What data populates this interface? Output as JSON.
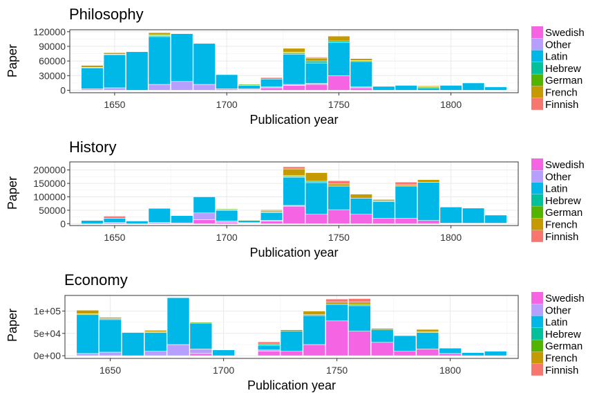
{
  "x_axis_label": "Publication year",
  "y_axis_label": "Paper",
  "legend": [
    "Swedish",
    "Other",
    "Latin",
    "Hebrew",
    "German",
    "French",
    "Finnish"
  ],
  "colors": {
    "Swedish": "#F564E3",
    "Other": "#B79FFF",
    "Latin": "#00B8E7",
    "Hebrew": "#00C19A",
    "German": "#53B400",
    "French": "#C49A00",
    "Finnish": "#F8766D"
  },
  "chart_data": [
    {
      "type": "bar",
      "stacked": true,
      "title": "Philosophy",
      "xlabel": "Publication year",
      "ylabel": "Paper",
      "xlim": [
        1630,
        1830
      ],
      "ylim": [
        -5000,
        124000
      ],
      "x_ticks": [
        1650,
        1700,
        1750,
        1800
      ],
      "y_ticks": [
        0,
        30000,
        60000,
        90000,
        120000
      ],
      "y_tick_labels": [
        "0",
        "30000",
        "60000",
        "90000",
        "120000"
      ],
      "bin_width": 10,
      "grid": true,
      "legend_position": "right",
      "categories": [
        1640,
        1650,
        1660,
        1670,
        1680,
        1690,
        1700,
        1710,
        1720,
        1730,
        1740,
        1750,
        1760,
        1770,
        1780,
        1790,
        1800,
        1810,
        1820
      ],
      "series": [
        {
          "name": "Swedish",
          "values": [
            0,
            0,
            0,
            0,
            0,
            0,
            0,
            1000,
            5000,
            10000,
            12000,
            30000,
            5000,
            0,
            0,
            0,
            0,
            0,
            0
          ]
        },
        {
          "name": "Other",
          "values": [
            3000,
            5000,
            0,
            12000,
            18000,
            12000,
            3000,
            2000,
            2000,
            2000,
            2000,
            0,
            2000,
            0,
            0,
            0,
            0,
            0,
            0
          ]
        },
        {
          "name": "Latin",
          "values": [
            43000,
            68000,
            79000,
            98000,
            98000,
            84000,
            29000,
            7000,
            16000,
            62000,
            42000,
            68000,
            52000,
            8000,
            10000,
            5000,
            10000,
            15000,
            7000
          ]
        },
        {
          "name": "Hebrew",
          "values": [
            0,
            0,
            0,
            2000,
            0,
            0,
            0,
            0,
            0,
            2000,
            4000,
            3000,
            0,
            0,
            0,
            0,
            0,
            0,
            0
          ]
        },
        {
          "name": "German",
          "values": [
            1000,
            1000,
            0,
            2000,
            0,
            0,
            0,
            2000,
            0,
            2000,
            0,
            0,
            2000,
            0,
            0,
            2000,
            0,
            0,
            0
          ]
        },
        {
          "name": "French",
          "values": [
            4000,
            3000,
            0,
            4000,
            0,
            0,
            0,
            0,
            0,
            8000,
            6000,
            10000,
            4000,
            0,
            0,
            2000,
            0,
            0,
            0
          ]
        },
        {
          "name": "Finnish",
          "values": [
            0,
            0,
            0,
            0,
            0,
            0,
            0,
            0,
            3000,
            0,
            2000,
            0,
            0,
            0,
            0,
            0,
            0,
            0,
            0
          ]
        }
      ]
    },
    {
      "type": "bar",
      "stacked": true,
      "title": "History",
      "xlabel": "Publication year",
      "ylabel": "Paper",
      "xlim": [
        1630,
        1830
      ],
      "ylim": [
        -7000,
        230000
      ],
      "x_ticks": [
        1650,
        1700,
        1750,
        1800
      ],
      "y_ticks": [
        0,
        50000,
        100000,
        150000,
        200000
      ],
      "y_tick_labels": [
        "0",
        "50000",
        "100000",
        "150000",
        "200000"
      ],
      "bin_width": 10,
      "grid": true,
      "legend_position": "right",
      "categories": [
        1640,
        1650,
        1660,
        1670,
        1680,
        1690,
        1700,
        1710,
        1720,
        1730,
        1740,
        1750,
        1760,
        1770,
        1780,
        1790,
        1800,
        1810,
        1820
      ],
      "series": [
        {
          "name": "Swedish",
          "values": [
            0,
            0,
            0,
            0,
            0,
            15000,
            5000,
            2000,
            10000,
            65000,
            35000,
            52000,
            35000,
            20000,
            20000,
            12000,
            2000,
            2000,
            2000
          ]
        },
        {
          "name": "Other",
          "values": [
            0,
            5000,
            0,
            5000,
            3000,
            25000,
            5000,
            2000,
            2000,
            3000,
            0,
            0,
            0,
            0,
            0,
            0,
            0,
            0,
            0
          ]
        },
        {
          "name": "Latin",
          "values": [
            12000,
            15000,
            10000,
            52000,
            27000,
            60000,
            40000,
            8000,
            30000,
            105000,
            118000,
            88000,
            60000,
            63000,
            120000,
            142000,
            60000,
            56000,
            30000
          ]
        },
        {
          "name": "Hebrew",
          "values": [
            0,
            0,
            0,
            0,
            0,
            0,
            2000,
            0,
            0,
            3000,
            5000,
            0,
            0,
            0,
            0,
            0,
            0,
            0,
            0
          ]
        },
        {
          "name": "German",
          "values": [
            0,
            0,
            0,
            0,
            0,
            0,
            3000,
            2000,
            2000,
            3000,
            0,
            0,
            0,
            2000,
            0,
            0,
            0,
            0,
            0
          ]
        },
        {
          "name": "French",
          "values": [
            0,
            0,
            0,
            0,
            0,
            0,
            0,
            0,
            5000,
            25000,
            32000,
            8000,
            15000,
            5000,
            5000,
            10000,
            0,
            0,
            0
          ]
        },
        {
          "name": "Finnish",
          "values": [
            0,
            8000,
            0,
            0,
            0,
            0,
            0,
            0,
            3000,
            8000,
            0,
            12000,
            0,
            0,
            10000,
            0,
            0,
            0,
            0
          ]
        }
      ]
    },
    {
      "type": "bar",
      "stacked": true,
      "title": "Economy",
      "xlabel": "Publication year",
      "ylabel": "Paper",
      "xlim": [
        1630,
        1830
      ],
      "ylim": [
        -6000,
        135000
      ],
      "x_ticks": [
        1650,
        1700,
        1750,
        1800
      ],
      "y_ticks": [
        0,
        50000,
        100000
      ],
      "y_tick_labels": [
        "0e+00",
        "5e+04",
        "1e+05"
      ],
      "bin_width": 10,
      "grid": true,
      "legend_position": "right",
      "categories": [
        1640,
        1650,
        1660,
        1670,
        1680,
        1690,
        1700,
        1710,
        1720,
        1730,
        1740,
        1750,
        1760,
        1770,
        1780,
        1790,
        1800,
        1810,
        1820
      ],
      "series": [
        {
          "name": "Swedish",
          "values": [
            0,
            0,
            0,
            0,
            0,
            5000,
            0,
            0,
            10000,
            10000,
            25000,
            78000,
            55000,
            30000,
            10000,
            15000,
            5000,
            0,
            0
          ]
        },
        {
          "name": "Other",
          "values": [
            5000,
            8000,
            0,
            10000,
            25000,
            10000,
            0,
            0,
            3000,
            0,
            0,
            0,
            0,
            0,
            0,
            0,
            0,
            0,
            0
          ]
        },
        {
          "name": "Latin",
          "values": [
            87000,
            73000,
            52000,
            42000,
            105000,
            58000,
            13000,
            0,
            10000,
            45000,
            65000,
            37000,
            57000,
            28000,
            35000,
            37000,
            12000,
            7000,
            10000
          ]
        },
        {
          "name": "Hebrew",
          "values": [
            0,
            0,
            0,
            0,
            0,
            0,
            0,
            0,
            3000,
            0,
            0,
            0,
            0,
            0,
            0,
            0,
            0,
            0,
            0
          ]
        },
        {
          "name": "German",
          "values": [
            2000,
            2000,
            0,
            2000,
            0,
            2000,
            0,
            0,
            0,
            3000,
            2000,
            0,
            3000,
            3000,
            0,
            2000,
            0,
            0,
            0
          ]
        },
        {
          "name": "French",
          "values": [
            8000,
            3000,
            0,
            3000,
            0,
            0,
            0,
            0,
            0,
            0,
            8000,
            5000,
            5000,
            0,
            0,
            5000,
            0,
            0,
            0
          ]
        },
        {
          "name": "Finnish",
          "values": [
            0,
            0,
            0,
            0,
            0,
            0,
            0,
            0,
            5000,
            0,
            0,
            7000,
            8000,
            0,
            0,
            0,
            0,
            0,
            0
          ]
        }
      ]
    }
  ]
}
